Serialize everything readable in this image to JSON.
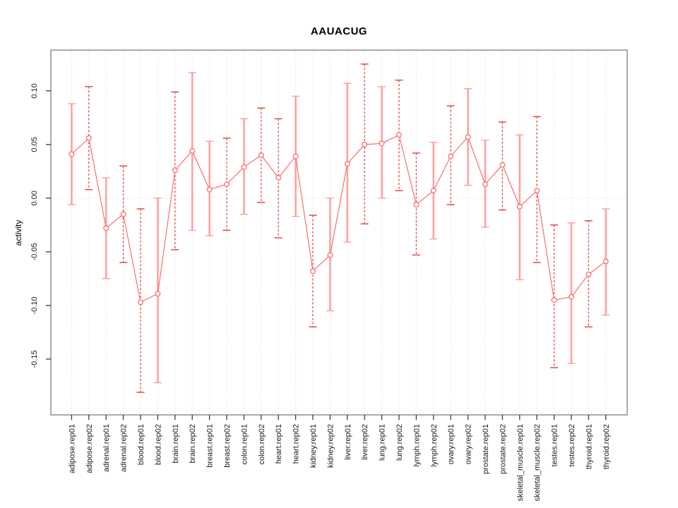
{
  "page": {
    "background": "#ffffff"
  },
  "chart_data": {
    "type": "line",
    "title": "AAUACUG",
    "xlabel": "",
    "ylabel": "activity",
    "ylim": [
      -0.202,
      0.138
    ],
    "yticks": [
      0.1,
      0.05,
      0.0,
      -0.05,
      -0.1,
      -0.15
    ],
    "ytick_labels": [
      "0.10",
      "0.05",
      "0.00",
      "-0.05",
      "-0.10",
      "-0.15"
    ],
    "grid": {
      "vertical_dotted_per_category": true,
      "horizontal_dotted_at_zero": true
    },
    "legend": "none",
    "categories": [
      "adipose.rep01",
      "adipose.rep02",
      "adrenal.rep01",
      "adrenal.rep02",
      "blood.rep01",
      "blood.rep02",
      "brain.rep01",
      "brain.rep02",
      "breast.rep01",
      "breast.rep02",
      "colon.rep01",
      "colon.rep02",
      "heart.rep01",
      "heart.rep02",
      "kidney.rep01",
      "kidney.rep02",
      "liver.rep01",
      "liver.rep02",
      "lung.rep01",
      "lung.rep02",
      "lymph.rep01",
      "lymph.rep02",
      "ovary.rep01",
      "ovary.rep02",
      "prostate.rep01",
      "prostate.rep02",
      "skeletal_muscle.rep01",
      "skeletal_muscle.rep02",
      "testes.rep01",
      "testes.rep02",
      "thyroid.rep01",
      "thyroid.rep02"
    ],
    "series": [
      {
        "name": "activity",
        "values": [
          0.041,
          0.056,
          -0.028,
          -0.015,
          -0.097,
          -0.089,
          0.026,
          0.044,
          0.008,
          0.013,
          0.029,
          0.04,
          0.019,
          0.039,
          -0.068,
          -0.053,
          0.032,
          0.05,
          0.051,
          0.059,
          -0.006,
          0.007,
          0.039,
          0.057,
          0.013,
          0.031,
          -0.008,
          0.007,
          -0.095,
          -0.092,
          -0.071,
          -0.059
        ],
        "err_hi": [
          0.088,
          0.104,
          0.019,
          0.03,
          -0.01,
          0.0,
          0.099,
          0.117,
          0.053,
          0.056,
          0.074,
          0.084,
          0.074,
          0.095,
          -0.016,
          0.0,
          0.107,
          0.125,
          0.104,
          0.11,
          0.042,
          0.052,
          0.086,
          0.102,
          0.054,
          0.071,
          0.059,
          0.076,
          -0.025,
          -0.023,
          -0.021,
          -0.01
        ],
        "err_lo": [
          -0.006,
          0.008,
          -0.075,
          -0.06,
          -0.181,
          -0.172,
          -0.048,
          -0.03,
          -0.035,
          -0.03,
          -0.015,
          -0.004,
          -0.037,
          -0.017,
          -0.12,
          -0.105,
          -0.041,
          -0.024,
          0.0,
          0.007,
          -0.053,
          -0.038,
          -0.006,
          0.012,
          -0.027,
          -0.011,
          -0.076,
          -0.06,
          -0.158,
          -0.154,
          -0.12,
          -0.109
        ],
        "bar_styles": [
          "solid",
          "dashed",
          "solid",
          "dashed",
          "dashed",
          "solid",
          "dashed",
          "solid",
          "solid",
          "dashed",
          "solid",
          "dashed",
          "dashed",
          "solid",
          "dashed",
          "solid",
          "solid",
          "dashed",
          "solid",
          "dashed",
          "dashed",
          "solid",
          "dashed",
          "solid",
          "solid",
          "dashed",
          "solid",
          "dashed",
          "dashed",
          "solid",
          "dashed",
          "solid"
        ]
      }
    ],
    "colors": {
      "line": "#ff6060",
      "point_stroke": "#ff6060",
      "point_fill": "#ffffff",
      "error_bar_solid": "#ffa2a2",
      "error_bar_dashed": "#e84848",
      "grid": "#d9d9d9",
      "axis_box": "#7d7d7d",
      "tick": "#3a3a3a",
      "text": "#1a1a1a"
    }
  }
}
